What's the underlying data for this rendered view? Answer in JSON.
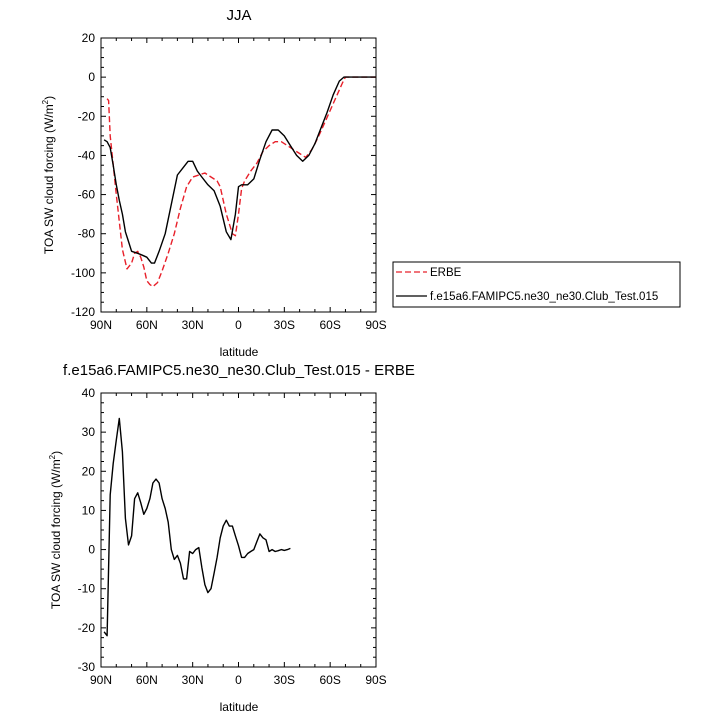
{
  "chart_data": [
    {
      "type": "line",
      "title": "JJA",
      "xlabel": "latitude",
      "ylabel": "TOA SW cloud forcing (W/m",
      "ylabel_sup": "2",
      "ylabel_close": ")",
      "xlim": [
        90,
        -90
      ],
      "ylim": [
        -120,
        20
      ],
      "xticks": [
        90,
        60,
        30,
        0,
        -30,
        -60,
        -90
      ],
      "xtick_labels": [
        "90N",
        "60N",
        "30N",
        "0",
        "30S",
        "60S",
        "90S"
      ],
      "yticks": [
        -120,
        -100,
        -80,
        -60,
        -40,
        -20,
        0,
        20
      ],
      "ytick_labels": [
        "-120",
        "-100",
        "-80",
        "-60",
        "-40",
        "-20",
        "0",
        "20"
      ],
      "grid": false,
      "legend_position": "right",
      "series": [
        {
          "name": "ERBE",
          "color": "#e8202a",
          "dash": "dashed",
          "points": [
            [
              86,
              -11
            ],
            [
              85,
              -12
            ],
            [
              84,
              -30
            ],
            [
              80,
              -60
            ],
            [
              76,
              -88
            ],
            [
              73,
              -98
            ],
            [
              70,
              -95
            ],
            [
              68,
              -90
            ],
            [
              66,
              -89
            ],
            [
              64,
              -92
            ],
            [
              62,
              -97
            ],
            [
              60,
              -104
            ],
            [
              58,
              -106
            ],
            [
              56,
              -107
            ],
            [
              53,
              -105
            ],
            [
              50,
              -99
            ],
            [
              46,
              -90
            ],
            [
              42,
              -80
            ],
            [
              38,
              -67
            ],
            [
              34,
              -56
            ],
            [
              30,
              -51
            ],
            [
              26,
              -50
            ],
            [
              22,
              -49
            ],
            [
              18,
              -51
            ],
            [
              14,
              -53
            ],
            [
              12,
              -56
            ],
            [
              8,
              -70
            ],
            [
              4,
              -80
            ],
            [
              2,
              -81
            ],
            [
              0,
              -70
            ],
            [
              -2,
              -57
            ],
            [
              -4,
              -53
            ],
            [
              -8,
              -48
            ],
            [
              -12,
              -44
            ],
            [
              -16,
              -38
            ],
            [
              -20,
              -35
            ],
            [
              -24,
              -33
            ],
            [
              -28,
              -33
            ],
            [
              -32,
              -35
            ],
            [
              -36,
              -37
            ],
            [
              -40,
              -39
            ],
            [
              -44,
              -41
            ],
            [
              -48,
              -37
            ],
            [
              -52,
              -31
            ],
            [
              -56,
              -24
            ],
            [
              -60,
              -17
            ],
            [
              -64,
              -10
            ],
            [
              -68,
              -3
            ],
            [
              -70,
              0
            ],
            [
              -74,
              0
            ],
            [
              -80,
              0
            ],
            [
              -86,
              0
            ],
            [
              -90,
              0
            ]
          ]
        },
        {
          "name": "f.e15a6.FAMIPC5.ne30_ne30.Club_Test.015",
          "color": "#000000",
          "dash": "solid",
          "points": [
            [
              88,
              -32
            ],
            [
              86,
              -33
            ],
            [
              84,
              -36
            ],
            [
              82,
              -45
            ],
            [
              80,
              -55
            ],
            [
              78,
              -63
            ],
            [
              76,
              -70
            ],
            [
              74,
              -79
            ],
            [
              72,
              -84
            ],
            [
              70,
              -89
            ],
            [
              66,
              -90
            ],
            [
              63,
              -91
            ],
            [
              60,
              -92
            ],
            [
              57,
              -95
            ],
            [
              55,
              -95
            ],
            [
              52,
              -89
            ],
            [
              48,
              -80
            ],
            [
              44,
              -65
            ],
            [
              40,
              -50
            ],
            [
              36,
              -46
            ],
            [
              33,
              -43
            ],
            [
              30,
              -43
            ],
            [
              27,
              -48
            ],
            [
              24,
              -51
            ],
            [
              20,
              -55
            ],
            [
              16,
              -58
            ],
            [
              12,
              -66
            ],
            [
              8,
              -79
            ],
            [
              5,
              -83
            ],
            [
              2,
              -70
            ],
            [
              0,
              -56
            ],
            [
              -2,
              -55
            ],
            [
              -6,
              -55
            ],
            [
              -10,
              -52
            ],
            [
              -14,
              -42
            ],
            [
              -18,
              -33
            ],
            [
              -22,
              -27
            ],
            [
              -26,
              -27
            ],
            [
              -30,
              -30
            ],
            [
              -34,
              -35
            ],
            [
              -38,
              -40
            ],
            [
              -42,
              -43
            ],
            [
              -46,
              -40
            ],
            [
              -50,
              -34
            ],
            [
              -54,
              -26
            ],
            [
              -58,
              -18
            ],
            [
              -62,
              -9
            ],
            [
              -66,
              -2
            ],
            [
              -69,
              0
            ],
            [
              -74,
              0
            ],
            [
              -80,
              0
            ],
            [
              -86,
              0
            ],
            [
              -90,
              0
            ]
          ]
        }
      ]
    },
    {
      "type": "line",
      "title": "f.e15a6.FAMIPC5.ne30_ne30.Club_Test.015 - ERBE",
      "xlabel": "latitude",
      "ylabel": "TOA SW cloud forcing (W/m",
      "ylabel_sup": "2",
      "ylabel_close": ")",
      "xlim": [
        90,
        -90
      ],
      "ylim": [
        -30,
        40
      ],
      "xticks": [
        90,
        60,
        30,
        0,
        -30,
        -60,
        -90
      ],
      "xtick_labels": [
        "90N",
        "60N",
        "30N",
        "0",
        "30S",
        "60S",
        "90S"
      ],
      "yticks": [
        -30,
        -20,
        -10,
        0,
        10,
        20,
        30,
        40
      ],
      "ytick_labels": [
        "-30",
        "-20",
        "-10",
        "0",
        "10",
        "20",
        "30",
        "40"
      ],
      "grid": false,
      "series": [
        {
          "color": "#000000",
          "dash": "solid",
          "points": [
            [
              88,
              -21
            ],
            [
              86,
              -22
            ],
            [
              84,
              14
            ],
            [
              82,
              22
            ],
            [
              80,
              28
            ],
            [
              78,
              33.5
            ],
            [
              76,
              25
            ],
            [
              74,
              8
            ],
            [
              72,
              1.2
            ],
            [
              70,
              3.5
            ],
            [
              68,
              13
            ],
            [
              66,
              14.5
            ],
            [
              64,
              12
            ],
            [
              62,
              9
            ],
            [
              60,
              10.5
            ],
            [
              58,
              13
            ],
            [
              56,
              17
            ],
            [
              54,
              18
            ],
            [
              52,
              17
            ],
            [
              50,
              13
            ],
            [
              48,
              10.5
            ],
            [
              46,
              7
            ],
            [
              44,
              0
            ],
            [
              42,
              -2.5
            ],
            [
              40,
              -1.5
            ],
            [
              38,
              -3.5
            ],
            [
              36,
              -7.5
            ],
            [
              34,
              -7.5
            ],
            [
              32,
              -0.5
            ],
            [
              30,
              -1
            ],
            [
              28,
              0
            ],
            [
              26,
              0.5
            ],
            [
              24,
              -4.5
            ],
            [
              22,
              -9
            ],
            [
              20,
              -11
            ],
            [
              18,
              -10
            ],
            [
              16,
              -6
            ],
            [
              14,
              -2
            ],
            [
              12,
              3
            ],
            [
              10,
              6
            ],
            [
              8,
              7.5
            ],
            [
              6,
              6
            ],
            [
              4,
              6
            ],
            [
              2,
              3.5
            ],
            [
              0,
              1
            ],
            [
              -2,
              -2
            ],
            [
              -4,
              -2
            ],
            [
              -6,
              -1
            ],
            [
              -8,
              -0.5
            ],
            [
              -10,
              0
            ],
            [
              -12,
              2
            ],
            [
              -14,
              4
            ],
            [
              -16,
              3
            ],
            [
              -18,
              2.5
            ],
            [
              -20,
              -0.5
            ],
            [
              -22,
              0
            ],
            [
              -24,
              -0.5
            ],
            [
              -26,
              -0.3
            ],
            [
              -28,
              0
            ],
            [
              -30,
              -0.2
            ],
            [
              -32,
              0
            ],
            [
              -34,
              0.3
            ]
          ],
          "x_offset_note": ""
        }
      ]
    }
  ]
}
